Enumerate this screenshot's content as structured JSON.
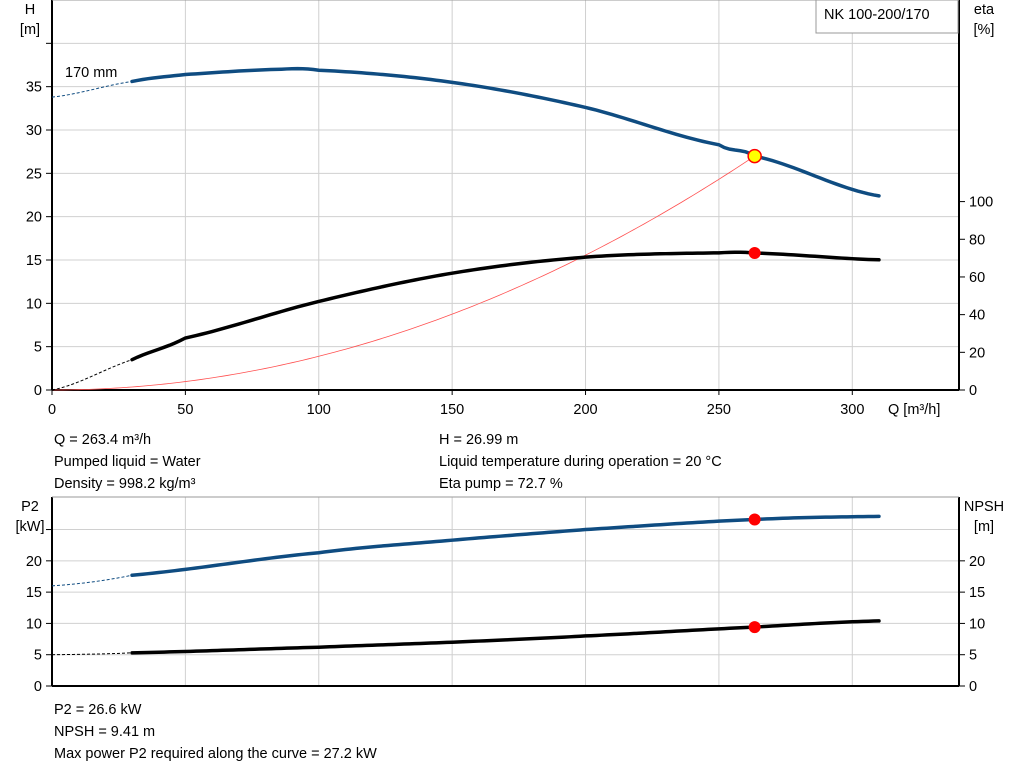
{
  "colors": {
    "head": "#0f4c81",
    "eta": "#000000",
    "system": "#ff5050",
    "duty_point": "#ff0000",
    "duty_fill_head": "#ffff00",
    "grid": "#d0d0d0"
  },
  "chart_data": [
    {
      "type": "line",
      "title": "NK 100-200/170",
      "xlabel": "Q [m³/h]",
      "ylabel_left": [
        "H",
        "[m]"
      ],
      "ylabel_right": [
        "eta",
        "[%]"
      ],
      "xlim": [
        0,
        340
      ],
      "ylim_left": [
        0,
        45
      ],
      "ylim_right": [
        0,
        207
      ],
      "x_ticks": [
        0,
        50,
        100,
        150,
        200,
        250,
        300
      ],
      "y_ticks_left": [
        0,
        5,
        10,
        15,
        20,
        25,
        30,
        35
      ],
      "y_gridlines_left": [
        0,
        5,
        10,
        15,
        20,
        25,
        30,
        35,
        40
      ],
      "y_ticks_right": [
        0,
        20,
        40,
        60,
        80,
        100
      ],
      "grid": true,
      "annotation": "170 mm",
      "series": [
        {
          "key": "H",
          "axis": "left",
          "x": [
            0,
            30,
            50,
            85,
            100,
            150,
            200,
            250,
            263.4,
            310
          ],
          "y": [
            33.8,
            35.6,
            36.4,
            37.0,
            36.9,
            35.5,
            32.6,
            28.3,
            26.99,
            22.4
          ],
          "extrapolated_below": 30
        },
        {
          "key": "eta",
          "axis": "right",
          "x": [
            0,
            30,
            50,
            100,
            150,
            200,
            250,
            263.4,
            310
          ],
          "y": [
            0,
            16.1,
            27.6,
            47,
            62,
            70.5,
            72.8,
            72.7,
            69.1
          ],
          "extrapolated_below": 30
        },
        {
          "key": "system",
          "axis": "left",
          "x": [
            0,
            263.4
          ],
          "y": [
            0,
            26.99
          ],
          "shape": "quadratic"
        }
      ],
      "duty_point": {
        "Q": 263.4,
        "H": 26.99,
        "eta": 72.7
      }
    },
    {
      "type": "line",
      "xlabel": "",
      "ylabel_left": [
        "P2",
        "[kW]"
      ],
      "ylabel_right": [
        "NPSH",
        "[m]"
      ],
      "xlim": [
        0,
        340
      ],
      "ylim": [
        0,
        30.2
      ],
      "y_ticks_left": [
        0,
        5,
        10,
        15,
        20
      ],
      "y_ticks_right": [
        0,
        5,
        10,
        15,
        20
      ],
      "y_gridlines": [
        0,
        5,
        10,
        15,
        20,
        25
      ],
      "grid": true,
      "series": [
        {
          "key": "P2",
          "x": [
            0,
            30,
            100,
            150,
            200,
            263.4,
            310
          ],
          "y": [
            16,
            17.7,
            21.3,
            23.3,
            25,
            26.6,
            27.1
          ],
          "extrapolated_below": 30
        },
        {
          "key": "NPSH",
          "x": [
            0,
            30,
            100,
            150,
            200,
            263.4,
            310
          ],
          "y": [
            5,
            5.3,
            6.2,
            7.0,
            8.0,
            9.41,
            10.4
          ],
          "extrapolated_below": 30
        }
      ],
      "duty_point": {
        "Q": 263.4,
        "P2": 26.6,
        "NPSH": 9.41
      }
    }
  ],
  "info_top": {
    "q": "Q = 263.4 m³/h",
    "liquid": "Pumped liquid = Water",
    "density": "Density = 998.2 kg/m³",
    "h": "H = 26.99 m",
    "temp": "Liquid temperature during operation = 20 °C",
    "eta": "Eta pump = 72.7 %"
  },
  "info_bottom": {
    "p2": "P2 = 26.6 kW",
    "npsh": "NPSH = 9.41 m",
    "maxp2": "Max power P2 required along the curve = 27.2 kW"
  }
}
